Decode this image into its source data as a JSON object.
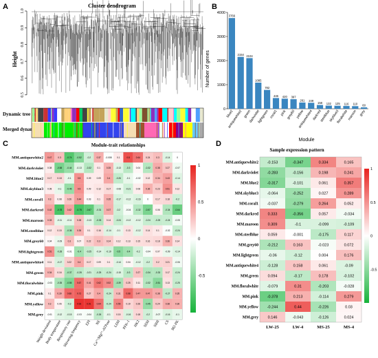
{
  "panels": {
    "A": "A",
    "B": "B",
    "C": "C",
    "D": "D"
  },
  "panelA": {
    "title": "Cluster dendrogram",
    "ylabel": "Height",
    "yticks": [
      "0.5",
      "0.6",
      "0.7",
      "0.8",
      "0.9",
      "1.0"
    ],
    "row_labels": [
      "Dynamic tree cut",
      "Merged dynamic"
    ]
  },
  "chart_data": {
    "type": "bar",
    "title": "",
    "xlabel": "Module",
    "ylabel": "Number of genes",
    "ylim": [
      0,
      4000
    ],
    "yticks": [
      0,
      1000,
      2000,
      3000,
      4000
    ],
    "categories": [
      "blue2",
      "antiquewhite2",
      "green",
      "darkviolet",
      "lightgreen",
      "coral1",
      "pink",
      "grey60",
      "yellow",
      "antiquewhite4",
      "darkred",
      "steelblue",
      "skyblue3",
      "floralwhite",
      "maroon",
      "grey"
    ],
    "values": [
      3766,
      2154,
      2104,
      1085,
      782,
      446,
      420,
      397,
      261,
      249,
      158,
      132,
      125,
      116,
      110,
      60
    ],
    "bar_color": "#3a86c0"
  },
  "panelC": {
    "title": "Module-trait relationships",
    "rows": [
      "MM.antiquewhite2",
      "MM.darkviolet",
      "MM.blue2",
      "MM.skyblue3",
      "MM.coral1",
      "MM.darkred",
      "MM.maroon",
      "MM.steelblue",
      "MM.grey60",
      "MM.lightgreen",
      "MM.antiquewhite4",
      "MM.green",
      "MM.floralwhite",
      "MM.pink",
      "MM.yellow",
      "MM.grey"
    ],
    "cols": [
      "Weight deviation",
      "Body temperature",
      "Respiratory rate",
      "Shivering frequency",
      "EPI",
      "NE",
      "Ca²⁺/Mg²⁺-ATPase",
      "LDH",
      "PFK-1",
      "HK2",
      "SDH",
      "SIHI",
      "CS",
      "M2-PK"
    ],
    "values": [
      [
        0.47,
        0.3,
        -0.74,
        -0.52,
        -0.2,
        0.37,
        -0.008,
        0.1,
        0.8,
        0.64,
        0.24,
        0.3,
        -0.14,
        0.0
      ],
      [
        0.08,
        -0.58,
        -0.44,
        -0.13,
        -0.32,
        0.1,
        0.35,
        -0.13,
        -0.3,
        0.04,
        -0.32,
        0.38,
        0.27,
        -0.07
      ],
      [
        0.17,
        0.18,
        -0.1,
        0.5,
        0.09,
        0.09,
        0.4,
        -0.26,
        -0.1,
        -0.02,
        0.12,
        0.34,
        0.43,
        -0.14
      ],
      [
        0.08,
        -0.1,
        -0.45,
        0.5,
        0.09,
        0.12,
        0.17,
        -0.08,
        -0.21,
        0.08,
        0.36,
        0.23,
        0.51,
        0.12
      ],
      [
        0.3,
        0.08,
        0.26,
        0.44,
        0.03,
        0.1,
        0.35,
        -0.17,
        -0.12,
        -0.16,
        0.0,
        0.17,
        0.18,
        -0.2
      ],
      [
        0.42,
        -0.78,
        0.42,
        -0.78,
        -0.67,
        -0.31,
        0.37,
        -0.2,
        -0.04,
        -0.32,
        -0.57,
        0.06,
        -0.34,
        -0.64
      ],
      [
        0.33,
        -0.11,
        -0.11,
        0.28,
        -0.13,
        -0.33,
        0.14,
        -0.24,
        -0.12,
        -0.12,
        -0.24,
        -0.25,
        -0.24,
        -0.05
      ],
      [
        0.12,
        0.15,
        -0.36,
        0.35,
        0.1,
        0.16,
        -0.14,
        -0.1,
        0.13,
        -0.12,
        0.14,
        0.1,
        -0.02,
        -0.24
      ],
      [
        0.04,
        -0.09,
        0.3,
        0.07,
        0.22,
        0.3,
        0.24,
        0.12,
        0.13,
        0.15,
        0.16,
        0.18,
        0.36,
        0.14
      ],
      [
        0.51,
        -0.28,
        -0.01,
        -0.4,
        -0.25,
        -0.14,
        -0.19,
        -0.5,
        -0.4,
        -0.2,
        -0.04,
        0.07,
        -0.09,
        -0.14
      ],
      [
        0.11,
        -0.17,
        0.22,
        0.4,
        0.17,
        0.09,
        0.1,
        -0.14,
        0.04,
        -0.12,
        -0.2,
        0.2,
        0.21,
        -0.06
      ],
      [
        0.34,
        0.16,
        -0.37,
        -0.28,
        -0.21,
        -0.25,
        -0.24,
        -0.15,
        -0.3,
        0.27,
        -0.34,
        -0.33,
        0.17,
        -0.24
      ],
      [
        -0.03,
        -0.35,
        -0.55,
        0.67,
        0.41,
        0.62,
        0.52,
        -0.39,
        0.25,
        0.11,
        -0.32,
        -0.51,
        0.13,
        -0.25
      ],
      [
        0.1,
        0.39,
        0.68,
        0.72,
        0.27,
        0.4,
        -0.24,
        0.31,
        0.68,
        0.47,
        0.47,
        0.38,
        -0.27,
        0.35
      ],
      [
        0.3,
        0.06,
        -0.2,
        0.93,
        0.91,
        0.64,
        -0.24,
        0.55,
        0.19,
        0.26,
        -0.45,
        0.24,
        0.38,
        0.36
      ],
      [
        -0.01,
        -0.12,
        -0.15,
        -0.03,
        -0.04,
        -0.26,
        -0.1,
        0.15,
        -0.16,
        0.18,
        -0.2,
        -0.07,
        -0.16,
        -0.1
      ]
    ],
    "scale_ticks": [
      "1",
      "0.5",
      "0",
      "-0.5"
    ]
  },
  "panelD": {
    "title": "Sample expression pattern",
    "rows": [
      "MM.antiquewhite2",
      "MM.darkviolet",
      "MM.blue2",
      "MM.skyblue3",
      "MM.coral1",
      "MM.darkred",
      "MM.maroon",
      "MM.steelblue",
      "MM.grey60",
      "MM.lightgreen",
      "MM.antiquewhite4",
      "MM.green",
      "MM.floralwhite",
      "MM.pink",
      "MM.yellow",
      "MM.grey"
    ],
    "cols": [
      "LW-25",
      "LW-4",
      "MS-25",
      "MS-4"
    ],
    "values": [
      [
        "-0.153",
        "-0.347",
        "0.334",
        "0.165"
      ],
      [
        "-0.283",
        "-0.156",
        "0.198",
        "0.241"
      ],
      [
        "-0.317",
        "-0.101",
        "0.061",
        "0.357"
      ],
      [
        "-0.064",
        "-0.252",
        "0.027",
        "0.289"
      ],
      [
        "-0.037",
        "-0.279",
        "0.264",
        "0.052"
      ],
      [
        "0.333",
        "-0.356",
        "0.057",
        "-0.034"
      ],
      [
        "0.309",
        "-0.1",
        "-0.099",
        "-0.109"
      ],
      [
        "0.059",
        "-0.001",
        "-0.175",
        "0.117"
      ],
      [
        "-0.212",
        "0.163",
        "-0.023",
        "0.072"
      ],
      [
        "-0.06",
        "-0.12",
        "0.004",
        "0.176"
      ],
      [
        "-0.128",
        "0.158",
        "0.061",
        "-0.09"
      ],
      [
        "0.094",
        "-0.17",
        "0.178",
        "-0.102"
      ],
      [
        "-0.079",
        "0.31",
        "-0.203",
        "-0.028"
      ],
      [
        "-0.378",
        "0.213",
        "-0.114",
        "0.279"
      ],
      [
        "-0.244",
        "0.44",
        "-0.226",
        "0.03"
      ],
      [
        "0.146",
        "-0.043",
        "-0.126",
        "0.024"
      ]
    ],
    "scale_ticks": [
      "1",
      "0.5",
      "0",
      "-0.5"
    ]
  }
}
